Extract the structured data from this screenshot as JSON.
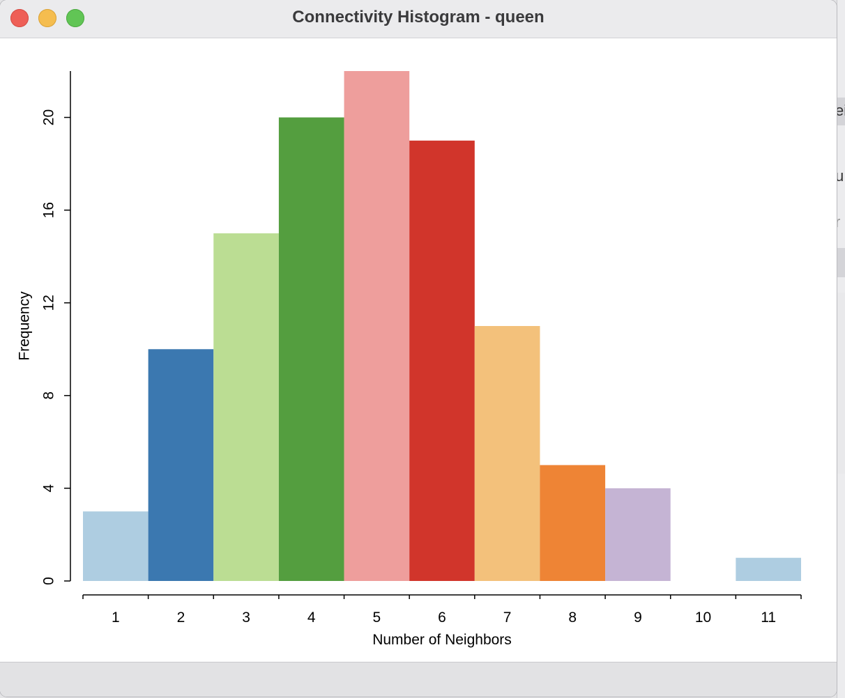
{
  "window": {
    "title": "Connectivity Histogram - queen"
  },
  "background_window": {
    "fragments": [
      "ei",
      "u",
      "r"
    ]
  },
  "chart_data": {
    "type": "bar",
    "title": "",
    "xlabel": "Number of Neighbors",
    "ylabel": "Frequency",
    "categories": [
      "1",
      "2",
      "3",
      "4",
      "5",
      "6",
      "7",
      "8",
      "9",
      "10",
      "11"
    ],
    "values": [
      3,
      10,
      15,
      20,
      22,
      19,
      11,
      5,
      4,
      0,
      1
    ],
    "colors": [
      "#aecde1",
      "#3b78b0",
      "#bbdd93",
      "#549e3f",
      "#ee9e9c",
      "#d1352b",
      "#f3c17b",
      "#ee8435",
      "#c5b4d4",
      "#ffffff",
      "#aecde1"
    ],
    "ylim": [
      0,
      22
    ],
    "yticks": [
      0,
      4,
      8,
      12,
      16,
      20
    ],
    "grid": false,
    "legend": "none"
  }
}
